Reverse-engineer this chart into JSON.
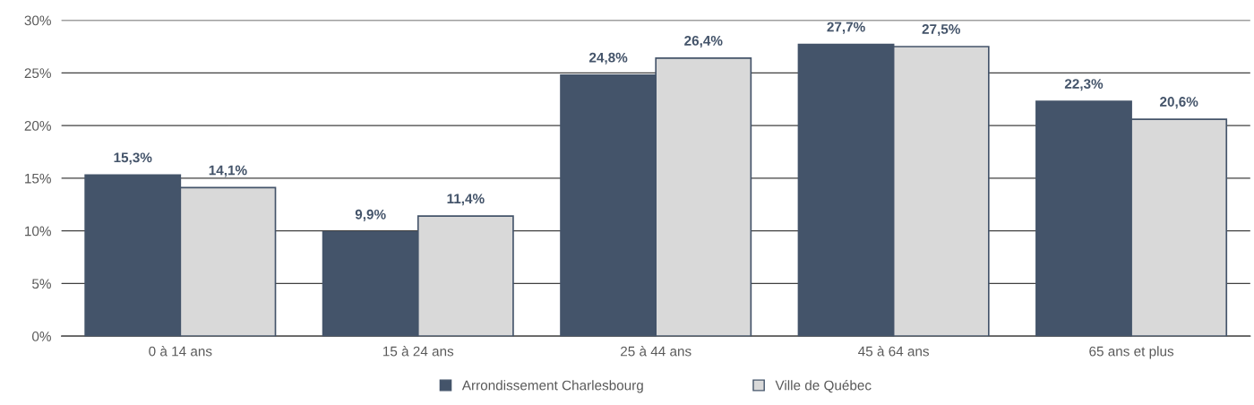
{
  "chart_data": {
    "type": "bar",
    "categories": [
      "0 à 14 ans",
      "15 à 24 ans",
      "25 à 44 ans",
      "45 à 64 ans",
      "65 ans et plus"
    ],
    "series": [
      {
        "name": "Arrondissement Charlesbourg",
        "color": "#44546a",
        "values": [
          15.3,
          9.9,
          24.8,
          27.7,
          22.3
        ],
        "value_labels": [
          "15,3%",
          "9,9%",
          "24,8%",
          "27,7%",
          "22,3%"
        ]
      },
      {
        "name": "Ville de Québec",
        "color": "#d9d9d9",
        "values": [
          14.1,
          11.4,
          26.4,
          27.5,
          20.6
        ],
        "value_labels": [
          "14,1%",
          "11,4%",
          "26,4%",
          "27,5%",
          "20,6%"
        ]
      }
    ],
    "ylim": [
      0,
      30
    ],
    "yticks": [
      {
        "value": 0,
        "label": "0%"
      },
      {
        "value": 5,
        "label": "5%"
      },
      {
        "value": 10,
        "label": "10%"
      },
      {
        "value": 15,
        "label": "15%"
      },
      {
        "value": 20,
        "label": "20%"
      },
      {
        "value": 25,
        "label": "25%"
      },
      {
        "value": 30,
        "label": "30%"
      }
    ],
    "grid": "y",
    "legend": "bottom"
  }
}
